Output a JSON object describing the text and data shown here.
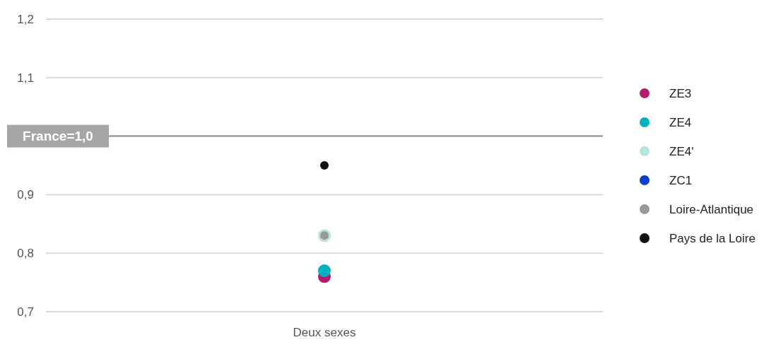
{
  "chart_data": {
    "type": "scatter",
    "categories": [
      "Deux sexes"
    ],
    "ylim": [
      0.7,
      1.2
    ],
    "yticks": [
      {
        "value": 0.7,
        "label": "0,7"
      },
      {
        "value": 0.8,
        "label": "0,8"
      },
      {
        "value": 0.9,
        "label": "0,9"
      },
      {
        "value": 1.1,
        "label": "1,1"
      },
      {
        "value": 1.2,
        "label": "1,2"
      }
    ],
    "grid": "y",
    "legend": "right",
    "marker": "circle",
    "ref_lines": [
      {
        "axis": "y",
        "value": 1.0,
        "label": "France=1,0",
        "color": "#888888"
      }
    ],
    "series": [
      {
        "name": "ZE3",
        "color": "#b5196b",
        "values": [
          0.76
        ]
      },
      {
        "name": "ZE4",
        "color": "#00b2bf",
        "values": [
          0.77
        ]
      },
      {
        "name": "ZE4'",
        "color": "#b7e3dc",
        "values": [
          0.83
        ]
      },
      {
        "name": "ZC1",
        "color": "#0a3fcf",
        "values": [
          null
        ]
      },
      {
        "name": "Loire-Atlantique",
        "color": "#999999",
        "values": [
          0.83
        ]
      },
      {
        "name": "Pays de la Loire",
        "color": "#111111",
        "values": [
          0.95
        ]
      }
    ]
  }
}
